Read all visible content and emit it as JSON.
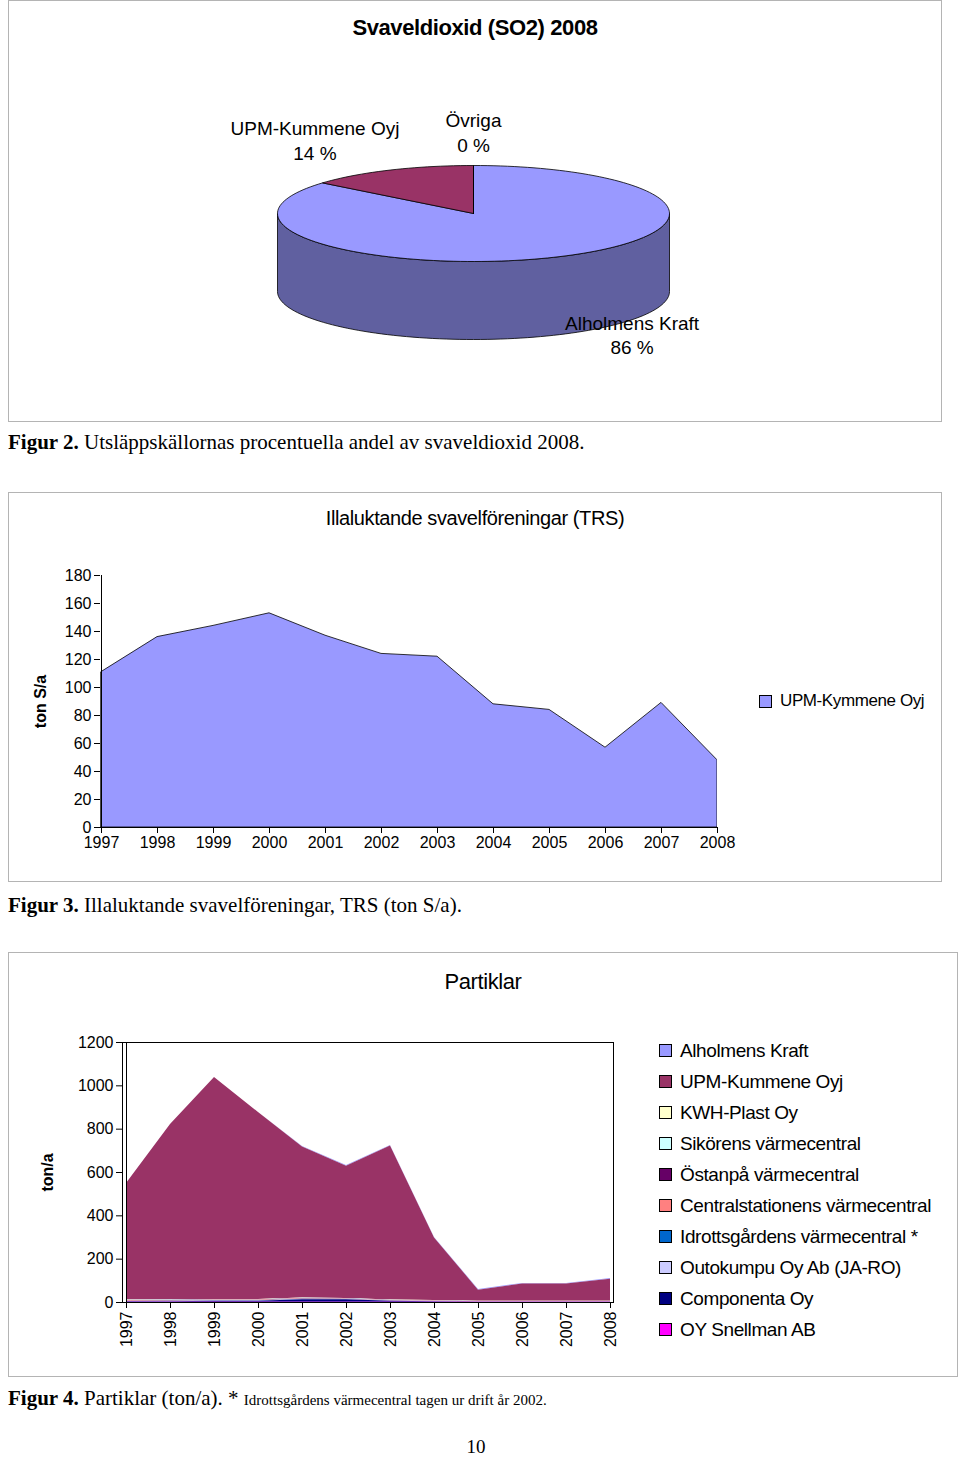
{
  "chart_data": [
    {
      "type": "pie",
      "title": "Svaveldioxid (SO2) 2008",
      "categories": [
        "Alholmens Kraft",
        "UPM-Kummene Oyj",
        "Övriga"
      ],
      "values": [
        86,
        14,
        0
      ],
      "value_labels": [
        "86 %",
        "14 %",
        "0 %"
      ],
      "colors": [
        "#9999FF",
        "#993366",
        "#FFFFCC"
      ],
      "data_labels": true
    },
    {
      "type": "area",
      "title": "Illaluktande svavelföreningar (TRS)",
      "categories": [
        "1997",
        "1998",
        "1999",
        "2000",
        "2001",
        "2002",
        "2003",
        "2004",
        "2005",
        "2006",
        "2007",
        "2008"
      ],
      "series": [
        {
          "name": "UPM-Kymmene Oyj",
          "color": "#9999FF",
          "values": [
            111,
            136,
            144,
            153,
            137,
            124,
            122,
            88,
            84,
            57,
            89,
            48
          ]
        }
      ],
      "ylabel": "ton S/a",
      "ylim": [
        0,
        180
      ],
      "yticks": [
        0,
        20,
        40,
        60,
        80,
        100,
        120,
        140,
        160,
        180
      ],
      "legend": "right"
    },
    {
      "type": "area",
      "title": "Partiklar",
      "stacked": true,
      "categories": [
        "1997",
        "1998",
        "1999",
        "2000",
        "2001",
        "2002",
        "2003",
        "2004",
        "2005",
        "2006",
        "2007",
        "2008"
      ],
      "series": [
        {
          "name": "Alholmens Kraft",
          "color": "#9999FF",
          "values": [
            0,
            0,
            0,
            0,
            2,
            3,
            3,
            2,
            3,
            3,
            3,
            4
          ]
        },
        {
          "name": "UPM-Kummene Oyj",
          "color": "#993366",
          "values": [
            538,
            809,
            1024,
            863,
            697,
            610,
            711,
            289,
            51,
            79,
            79,
            101
          ]
        },
        {
          "name": "KWH-Plast Oy",
          "color": "#FFFFCC",
          "values": [
            1,
            1,
            1,
            1,
            1,
            1,
            1,
            1,
            1,
            1,
            1,
            1
          ]
        },
        {
          "name": "Sikörens värmecentral",
          "color": "#CCFFFF",
          "values": [
            2,
            2,
            2,
            2,
            2,
            2,
            1,
            1,
            1,
            1,
            1,
            1
          ]
        },
        {
          "name": "Östanpå värmecentral",
          "color": "#660066",
          "values": [
            1,
            1,
            1,
            1,
            1,
            1,
            1,
            1,
            1,
            1,
            1,
            1
          ]
        },
        {
          "name": "Centralstationens värmecentral",
          "color": "#FF8080",
          "values": [
            2,
            2,
            2,
            2,
            2,
            1,
            1,
            1,
            1,
            1,
            1,
            1
          ]
        },
        {
          "name": "Idrottsgårdens värmecentral *",
          "color": "#0066CC",
          "values": [
            1,
            1,
            1,
            1,
            1,
            0,
            0,
            0,
            0,
            0,
            0,
            0
          ]
        },
        {
          "name": "Outokumpu Oy Ab (JA-RO)",
          "color": "#CCCCFF",
          "values": [
            1,
            1,
            1,
            1,
            1,
            1,
            1,
            1,
            0,
            0,
            0,
            0
          ]
        },
        {
          "name": "Componenta Oy",
          "color": "#000080",
          "values": [
            2,
            3,
            5,
            5,
            12,
            12,
            5,
            3,
            1,
            1,
            1,
            1
          ]
        },
        {
          "name": "OY Snellman AB",
          "color": "#FF00FF",
          "values": [
            1,
            1,
            1,
            1,
            1,
            1,
            1,
            1,
            1,
            1,
            1,
            1
          ]
        }
      ],
      "ylabel": "ton/a",
      "ylim": [
        0,
        1200
      ],
      "yticks": [
        0,
        200,
        400,
        600,
        800,
        1000,
        1200
      ],
      "legend": "right"
    }
  ],
  "captions": [
    {
      "label": "Figur 2.",
      "text": "Utsläppskällornas procentuella andel av svaveldioxid 2008."
    },
    {
      "label": "Figur 3.",
      "text": "Illaluktande svavelföreningar, TRS (ton S/a)."
    },
    {
      "label": "Figur 4.",
      "text": "Partiklar (ton/a). *",
      "note": "Idrottsgårdens värmecentral tagen ur drift år 2002."
    }
  ],
  "page_number": "10"
}
